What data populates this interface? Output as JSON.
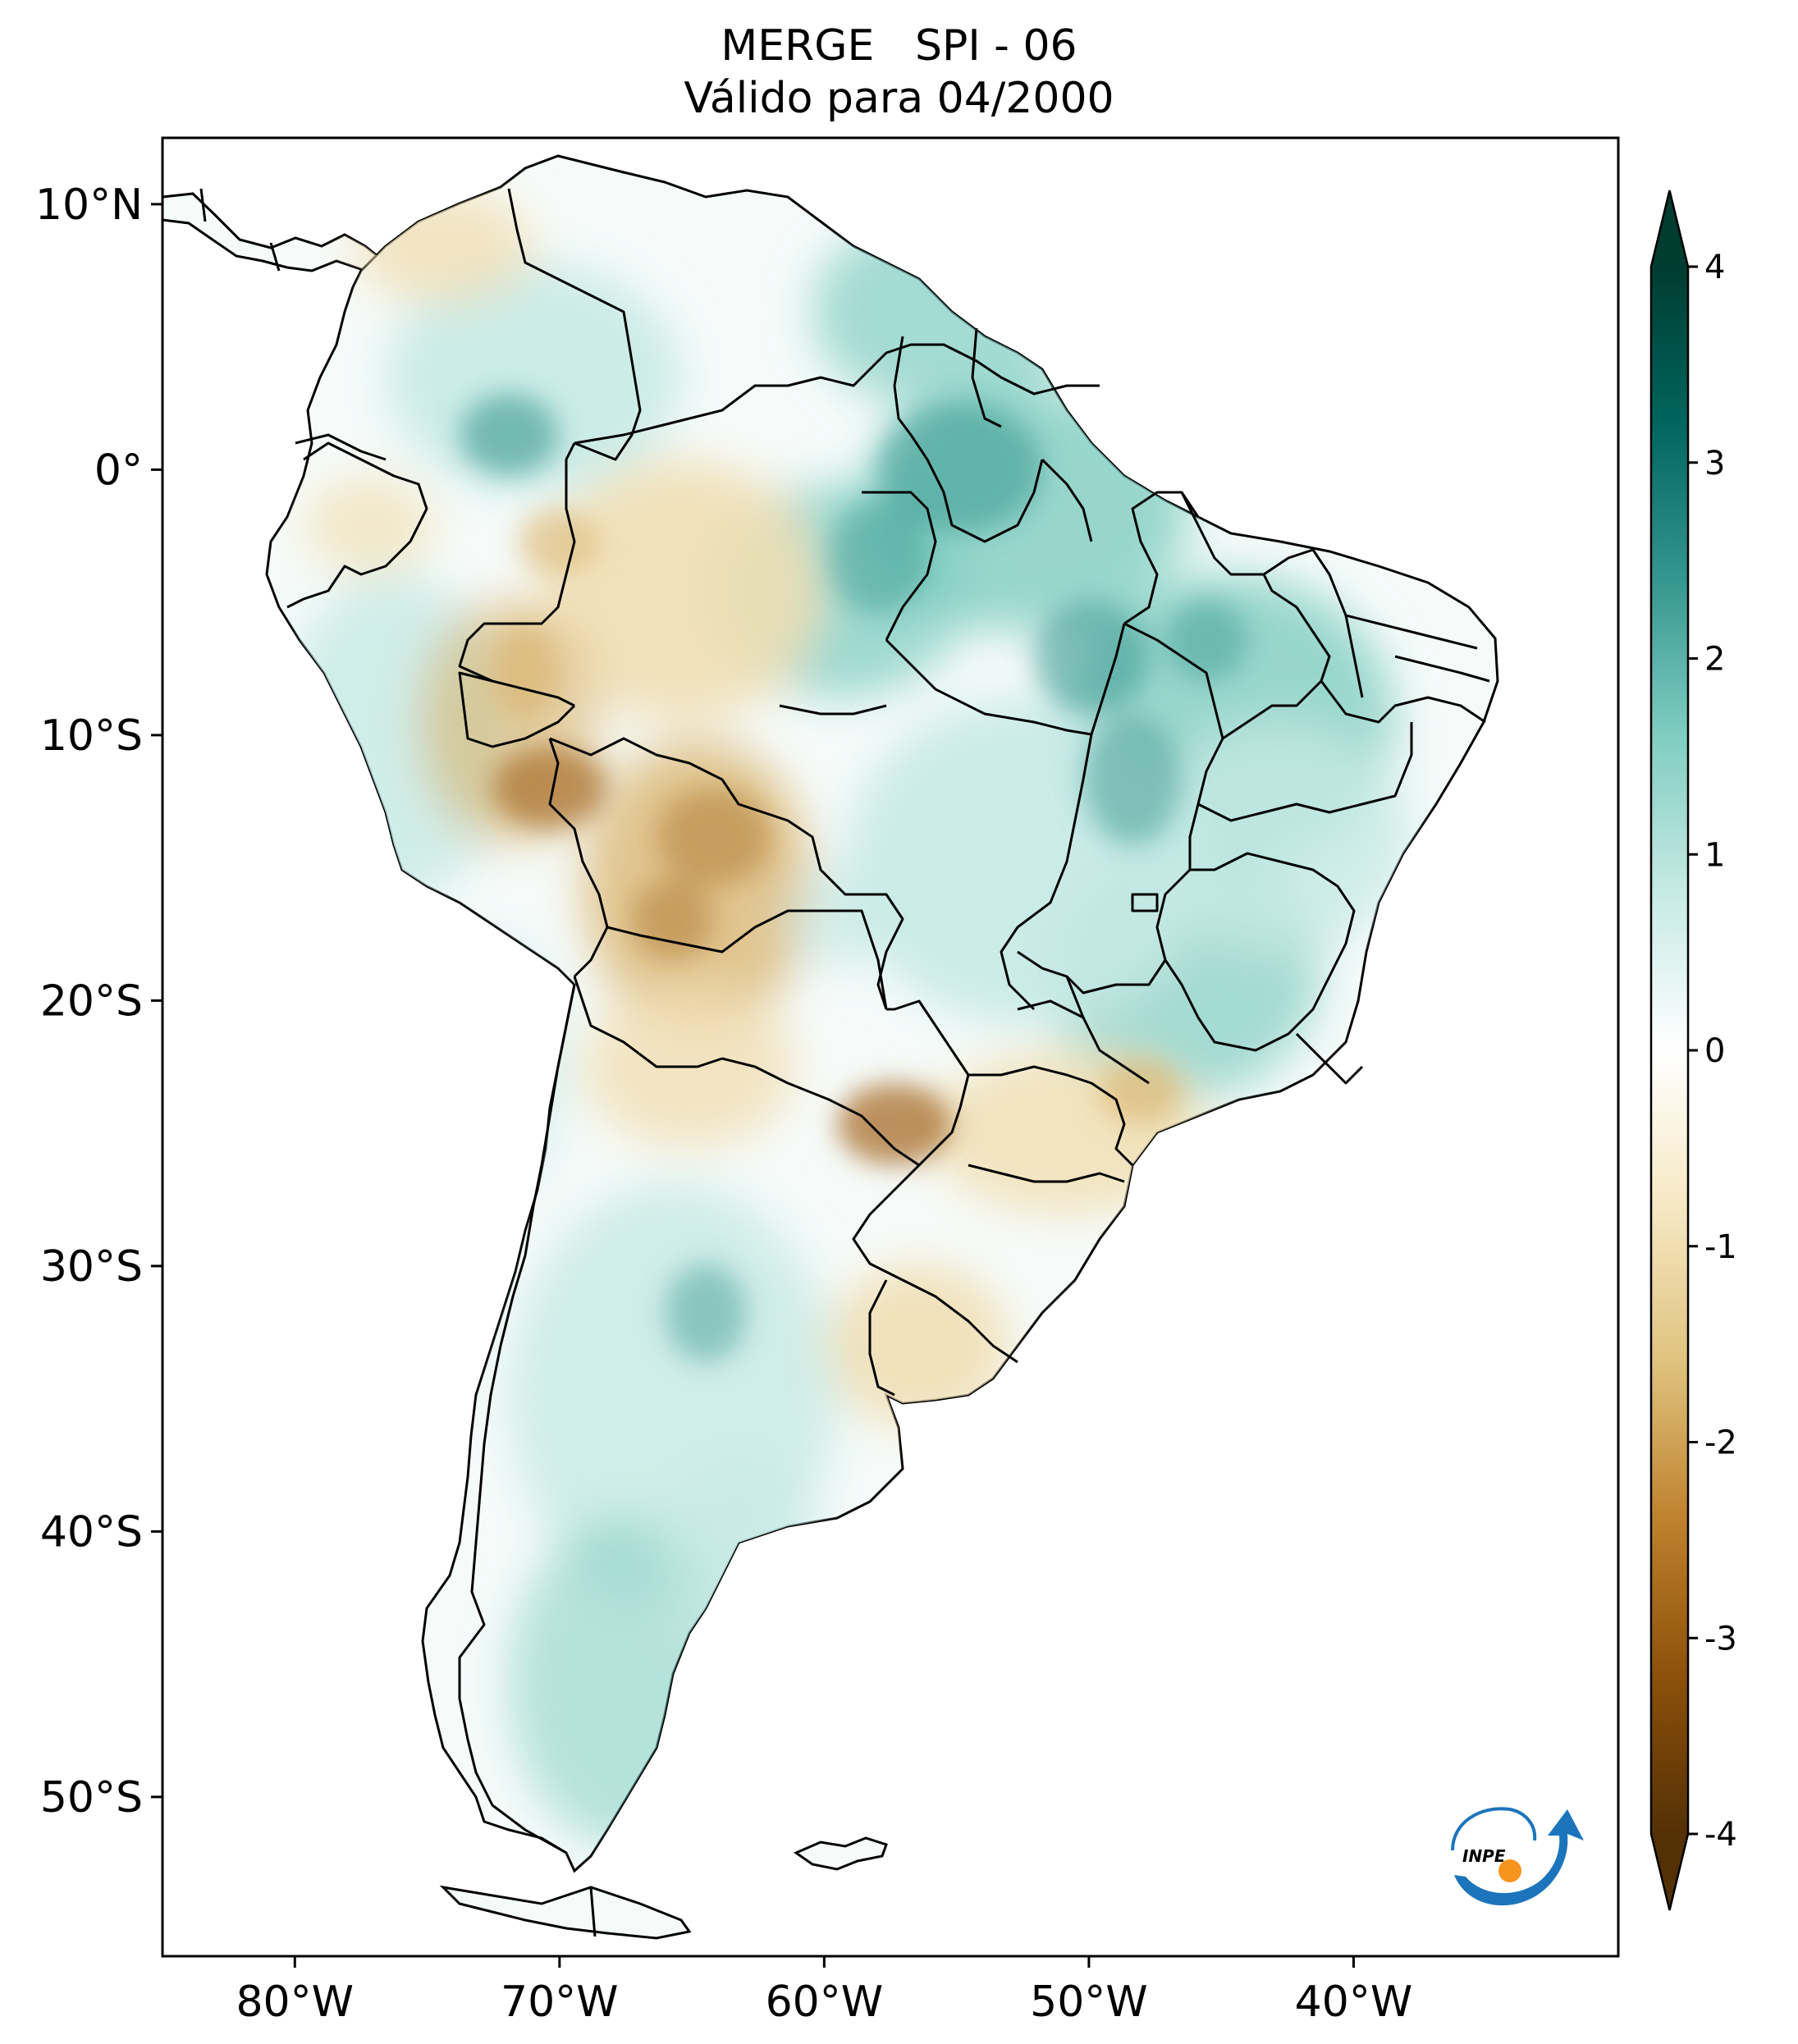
{
  "title": {
    "line1": "MERGE   SPI - 06",
    "line2": "Válido para 04/2000"
  },
  "axes": {
    "x_tick_labels": [
      "80°W",
      "70°W",
      "60°W",
      "50°W",
      "40°W"
    ],
    "x_tick_values": [
      -80,
      -70,
      -60,
      -50,
      -40
    ],
    "y_tick_labels": [
      "10°N",
      "0°",
      "10°S",
      "20°S",
      "30°S",
      "40°S",
      "50°S"
    ],
    "y_tick_values": [
      10,
      0,
      -10,
      -20,
      -30,
      -40,
      -50
    ],
    "lon_range": [
      -85,
      -30
    ],
    "lat_range": [
      -56,
      12.5
    ]
  },
  "colorbar": {
    "tick_labels": [
      "4",
      "3",
      "2",
      "1",
      "0",
      "-1",
      "-2",
      "-3",
      "-4"
    ],
    "tick_values": [
      4,
      3,
      2,
      1,
      0,
      -1,
      -2,
      -3,
      -4
    ],
    "range": [
      -4,
      4
    ],
    "colors": [
      "#543005",
      "#8c510a",
      "#bf812d",
      "#dfc27d",
      "#f6e8c3",
      "#ffffff",
      "#c7eae5",
      "#80cdc1",
      "#35978f",
      "#01665e",
      "#003c30"
    ]
  },
  "logo": {
    "text": "INPE",
    "colors": {
      "arc": "#1c75bc",
      "dot": "#f7941d"
    }
  },
  "map": {
    "colors": {
      "wet_light": "#c7eae5",
      "wet_mid": "#80cdc1",
      "wet_strong": "#35978f",
      "dry_light": "#f1dfb4",
      "dry_mid": "#d9b36b",
      "dry_strong": "#a86e26",
      "border": "#000000"
    }
  }
}
